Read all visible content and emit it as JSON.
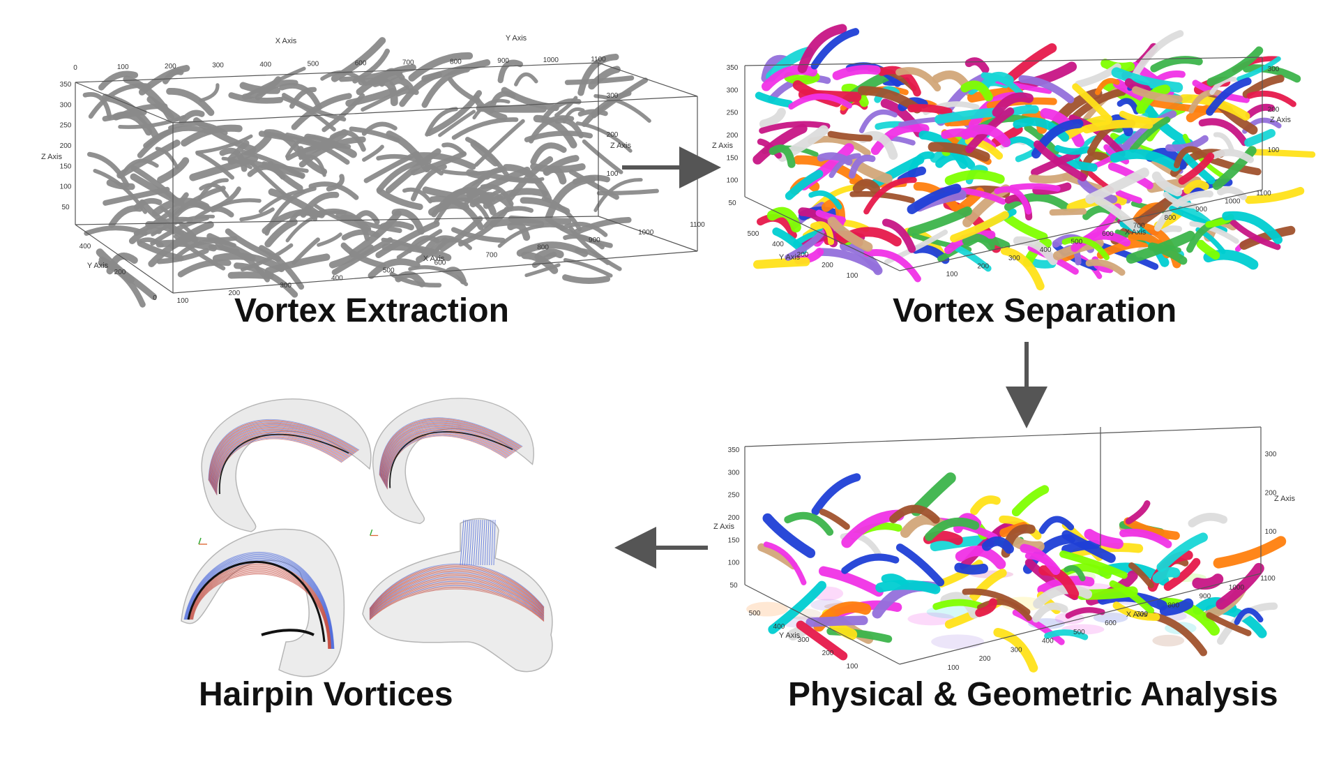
{
  "panels": [
    {
      "id": "extraction",
      "caption": "Vortex Extraction",
      "axes": {
        "x_title": "X Axis",
        "y_title": "Y Axis",
        "z_title": "Z Axis",
        "x_ticks": [
          "0",
          "100",
          "200",
          "300",
          "400",
          "500",
          "600",
          "700",
          "800",
          "900",
          "1000",
          "1100"
        ],
        "y_ticks": [
          "0",
          "200",
          "400"
        ],
        "z_ticks": [
          "50",
          "100",
          "150",
          "200",
          "250",
          "300",
          "350"
        ],
        "z_ticks_right": [
          "100",
          "200",
          "300"
        ]
      }
    },
    {
      "id": "separation",
      "caption": "Vortex Separation",
      "axes": {
        "x_title": "X Axis",
        "y_title": "Y Axis",
        "z_title": "Z Axis",
        "x_ticks": [
          "100",
          "200",
          "300",
          "400",
          "500",
          "600",
          "700",
          "800",
          "900",
          "1000",
          "1100"
        ],
        "y_ticks": [
          "100",
          "200",
          "300",
          "400",
          "500"
        ],
        "z_ticks": [
          "50",
          "100",
          "150",
          "200",
          "250",
          "300",
          "350"
        ],
        "z_ticks_right": [
          "100",
          "200",
          "300"
        ]
      }
    },
    {
      "id": "analysis",
      "caption": "Physical & Geometric Analysis",
      "axes": {
        "x_title": "X Axis",
        "y_title": "Y Axis",
        "z_title": "Z Axis",
        "x_ticks": [
          "100",
          "200",
          "300",
          "400",
          "500",
          "600",
          "700",
          "800",
          "900",
          "1000",
          "1100"
        ],
        "y_ticks": [
          "100",
          "200",
          "300",
          "400",
          "500"
        ],
        "z_ticks": [
          "50",
          "100",
          "150",
          "200",
          "250",
          "300",
          "350"
        ],
        "z_ticks_right": [
          "100",
          "200",
          "300"
        ]
      }
    },
    {
      "id": "hairpin",
      "caption": "Hairpin Vortices"
    }
  ],
  "flow": [
    "extraction",
    "separation",
    "analysis",
    "hairpin"
  ],
  "colors": {
    "arrow": "#555555",
    "gray_vortex": "#8a8a8a",
    "palette": [
      "#e6194b",
      "#3cb44b",
      "#ffe119",
      "#1f3fd6",
      "#f032e6",
      "#18d6d6",
      "#ff7f0e",
      "#9370db",
      "#a0522d",
      "#d2a679",
      "#dcdcdc",
      "#7fff00",
      "#c71585",
      "#00ced1"
    ],
    "hairpin_red": "#c0392b",
    "hairpin_blue": "#3b5bdb"
  }
}
